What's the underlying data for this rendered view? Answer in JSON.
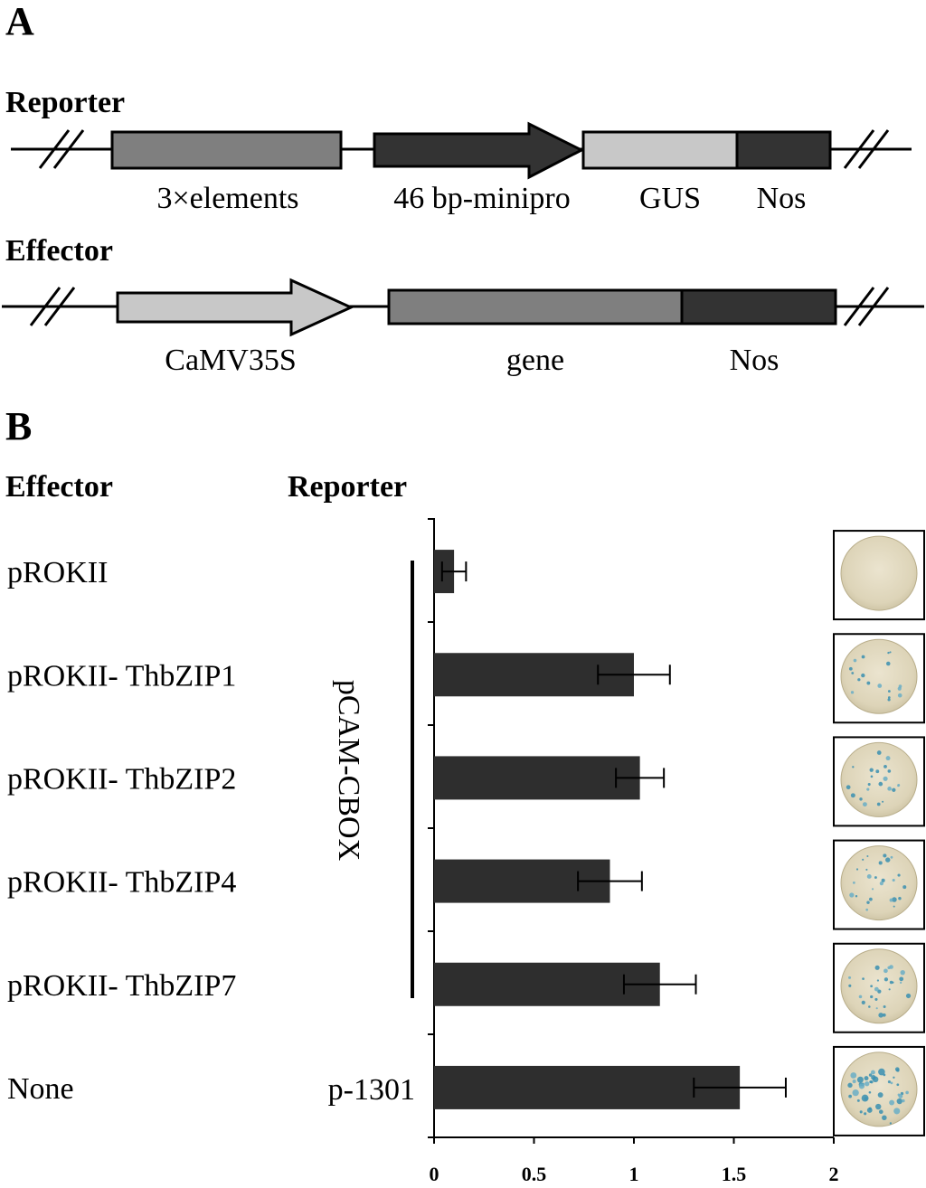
{
  "panel_a": {
    "label": "A",
    "reporter": {
      "title": "Reporter",
      "elements": [
        "3×elements",
        "46 bp-minipro",
        "GUS",
        "Nos"
      ]
    },
    "effector": {
      "title": "Effector",
      "elements": [
        "CaMV35S",
        "gene",
        "Nos"
      ]
    }
  },
  "panel_b": {
    "label": "B",
    "effector_header": "Effector",
    "reporter_header": "Reporter",
    "bracket_label": "pCAM-CBOX"
  },
  "chart_data": {
    "type": "bar",
    "orientation": "horizontal",
    "categories": [
      "pROKII",
      "pROKII- ThbZIP1",
      "pROKII- ThbZIP2",
      "pROKII- ThbZIP4",
      "pROKII- ThbZIP7",
      "None"
    ],
    "reporters": [
      "pCAM-CBOX",
      "pCAM-CBOX",
      "pCAM-CBOX",
      "pCAM-CBOX",
      "pCAM-CBOX",
      "p-1301"
    ],
    "single_reporter_label": "p-1301",
    "values": [
      0.1,
      1.0,
      1.03,
      0.88,
      1.13,
      1.53
    ],
    "errors": [
      0.06,
      0.18,
      0.12,
      0.16,
      0.18,
      0.23
    ],
    "xlim": [
      0,
      2
    ],
    "xticks": [
      "0",
      "0.5",
      "1",
      "1.5",
      "2"
    ],
    "bar_color": "#2e2e2e"
  },
  "colors": {
    "dark_box": "#333333",
    "mid_box": "#7f7f7f",
    "light_box": "#c8c8c8"
  }
}
